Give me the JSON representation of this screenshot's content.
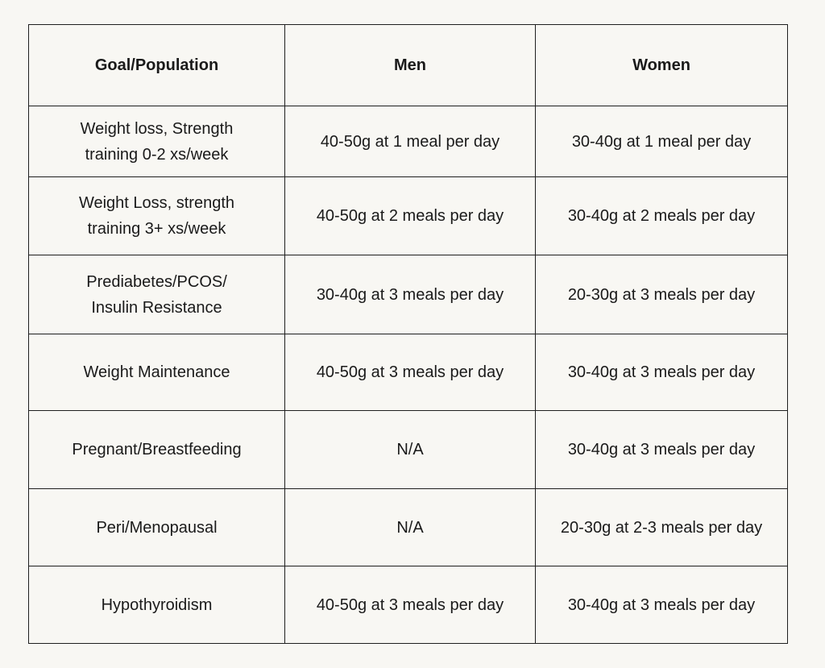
{
  "table": {
    "headers": {
      "goal": "Goal/Population",
      "men": "Men",
      "women": "Women"
    },
    "rows": [
      {
        "goal_line1": "Weight loss, Strength",
        "goal_line2": "training 0-2 xs/week",
        "men": "40-50g at 1 meal per day",
        "women": "30-40g at 1 meal per day"
      },
      {
        "goal_line1": "Weight Loss, strength",
        "goal_line2": "training 3+ xs/week",
        "men": "40-50g at 2 meals per day",
        "women": "30-40g at 2 meals per day"
      },
      {
        "goal_line1": "Prediabetes/PCOS/",
        "goal_line2": "Insulin Resistance",
        "men": "30-40g at 3 meals per day",
        "women": "20-30g at 3 meals per day"
      },
      {
        "goal_line1": "Weight Maintenance",
        "goal_line2": "",
        "men": "40-50g at 3 meals per day",
        "women": "30-40g at 3 meals per day"
      },
      {
        "goal_line1": "Pregnant/Breastfeeding",
        "goal_line2": "",
        "men": "N/A",
        "women": "30-40g at 3 meals per day"
      },
      {
        "goal_line1": "Peri/Menopausal",
        "goal_line2": "",
        "men": "N/A",
        "women": "20-30g at 2-3 meals per day"
      },
      {
        "goal_line1": "Hypothyroidism",
        "goal_line2": "",
        "men": "40-50g at 3 meals per day",
        "women": "30-40g at 3 meals per day"
      }
    ]
  }
}
